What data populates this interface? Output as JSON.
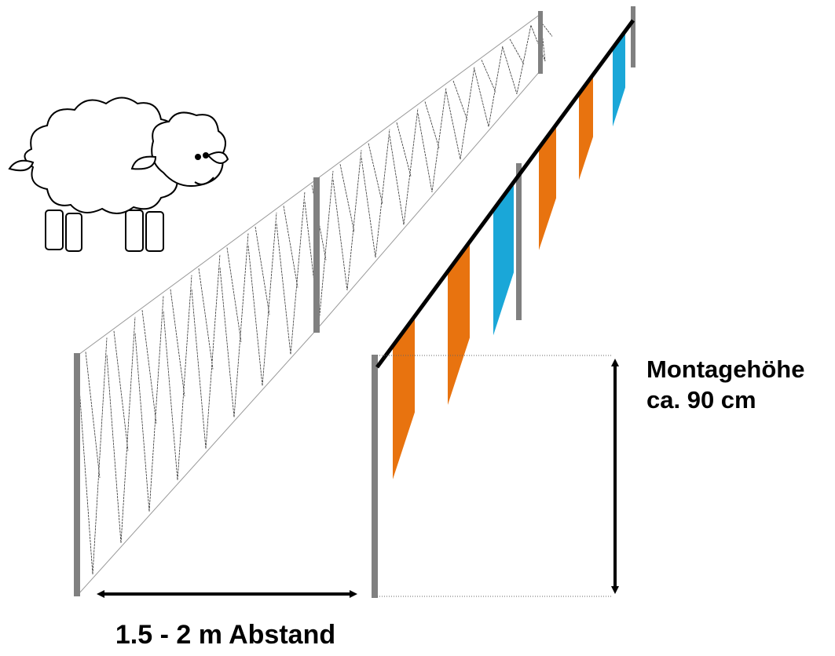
{
  "labels": {
    "height_title": "Montagehöhe",
    "height_value": "ca. 90 cm",
    "distance": "1.5 - 2 m Abstand"
  }
}
